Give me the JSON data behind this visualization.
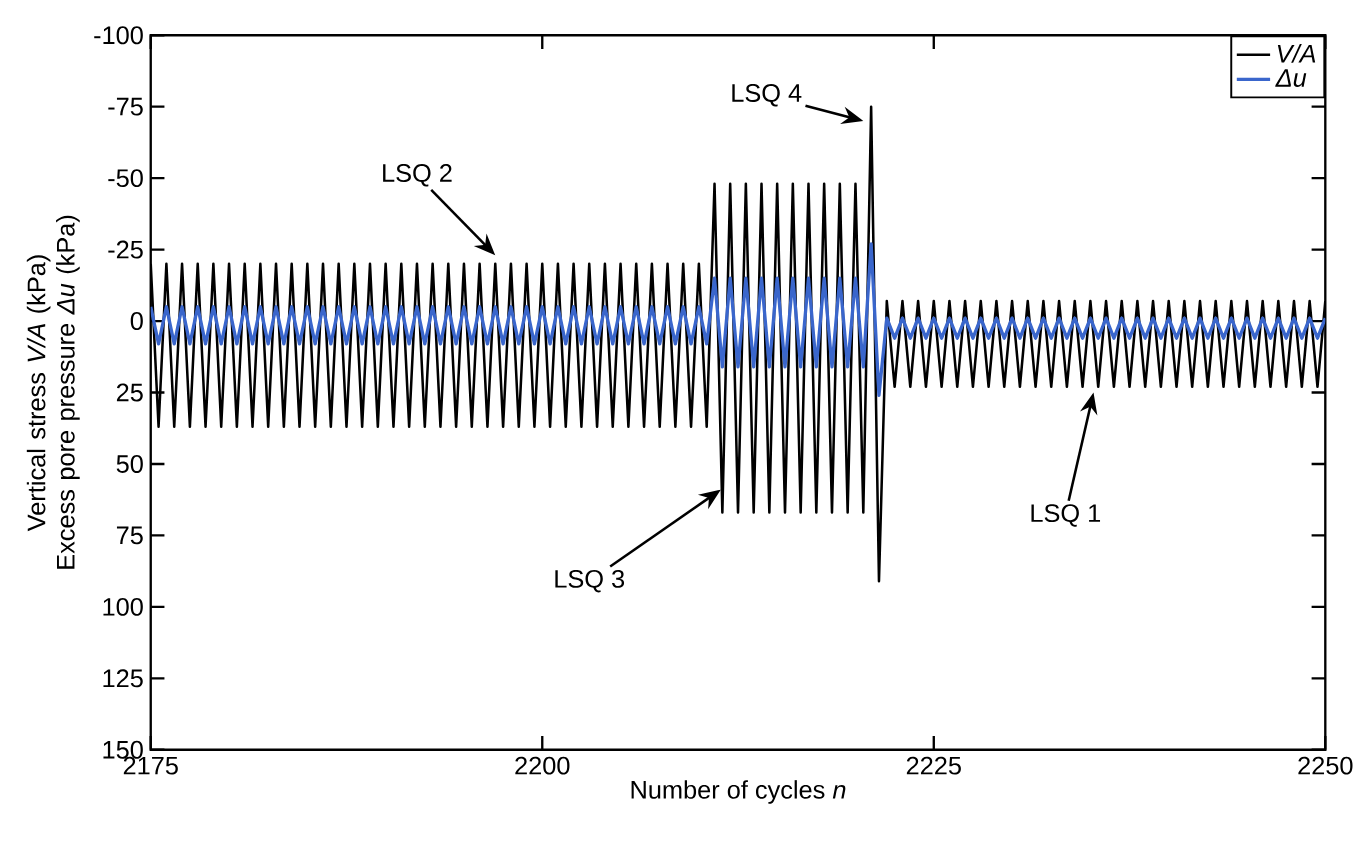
{
  "chart_data": {
    "type": "line",
    "xlabel": "Number of cycles *n*",
    "ylabel": "Vertical stress *V/A* (kPa) Excess pore pressure *Δu* (kPa)",
    "x": [
      2175,
      2175.5,
      2176,
      2176.5,
      2177,
      2177.5,
      2178,
      2178.5,
      2179,
      2179.5,
      2180,
      2180.5,
      2181,
      2181.5,
      2182,
      2182.5,
      2183,
      2183.5,
      2184,
      2184.5,
      2185,
      2185.5,
      2186,
      2186.5,
      2187,
      2187.5,
      2188,
      2188.5,
      2189,
      2189.5,
      2190,
      2190.5,
      2191,
      2191.5,
      2192,
      2192.5,
      2193,
      2193.5,
      2194,
      2194.5,
      2195,
      2195.5,
      2196,
      2196.5,
      2197,
      2197.5,
      2198,
      2198.5,
      2199,
      2199.5,
      2200,
      2200.5,
      2201,
      2201.5,
      2202,
      2202.5,
      2203,
      2203.5,
      2204,
      2204.5,
      2205,
      2205.5,
      2206,
      2206.5,
      2207,
      2207.5,
      2208,
      2208.5,
      2209,
      2209.5,
      2210,
      2210.5,
      2211,
      2211.5,
      2212,
      2212.5,
      2213,
      2213.5,
      2214,
      2214.5,
      2215,
      2215.5,
      2216,
      2216.5,
      2217,
      2217.5,
      2218,
      2218.5,
      2219,
      2219.5,
      2220,
      2220.5,
      2221,
      2221.5,
      2222,
      2222.5,
      2223,
      2223.5,
      2224,
      2224.5,
      2225,
      2225.5,
      2226,
      2226.5,
      2227,
      2227.5,
      2228,
      2228.5,
      2229,
      2229.5,
      2230,
      2230.5,
      2231,
      2231.5,
      2232,
      2232.5,
      2233,
      2233.5,
      2234,
      2234.5,
      2235,
      2235.5,
      2236,
      2236.5,
      2237,
      2237.5,
      2238,
      2238.5,
      2239,
      2239.5,
      2240,
      2240.5,
      2241,
      2241.5,
      2242,
      2242.5,
      2243,
      2243.5,
      2244,
      2244.5,
      2245,
      2245.5,
      2246,
      2246.5,
      2247,
      2247.5,
      2248,
      2248.5,
      2249,
      2249.5,
      2250
    ],
    "series": [
      {
        "name": "V/A",
        "color": "#000000",
        "values": [
          -20,
          37,
          -20,
          37,
          -20,
          37,
          -20,
          37,
          -20,
          37,
          -20,
          37,
          -20,
          37,
          -20,
          37,
          -20,
          37,
          -20,
          37,
          -20,
          37,
          -20,
          37,
          -20,
          37,
          -20,
          37,
          -20,
          37,
          -20,
          37,
          -20,
          37,
          -20,
          37,
          -20,
          37,
          -20,
          37,
          -20,
          37,
          -20,
          37,
          -20,
          37,
          -20,
          37,
          -20,
          37,
          -20,
          37,
          -20,
          37,
          -20,
          37,
          -20,
          37,
          -20,
          37,
          -20,
          37,
          -20,
          37,
          -20,
          37,
          -20,
          37,
          -20,
          37,
          -20,
          37,
          -48,
          67,
          -48,
          67,
          -48,
          67,
          -48,
          67,
          -48,
          67,
          -48,
          67,
          -48,
          67,
          -48,
          67,
          -48,
          67,
          -48,
          67,
          -75,
          91,
          -7,
          23,
          -7,
          23,
          -7,
          23,
          -7,
          23,
          -7,
          23,
          -7,
          23,
          -7,
          23,
          -7,
          23,
          -7,
          23,
          -7,
          23,
          -7,
          23,
          -7,
          23,
          -7,
          23,
          -7,
          23,
          -7,
          23,
          -7,
          23,
          -7,
          23,
          -7,
          23,
          -7,
          23,
          -7,
          23,
          -7,
          23,
          -7,
          23,
          -7,
          23,
          -7,
          23,
          -7,
          23,
          -7,
          23,
          -7,
          23,
          -7,
          23,
          -7
        ]
      },
      {
        "name": "Δu",
        "color": "#3a66cc",
        "values": [
          -5,
          8,
          -5,
          8,
          -5,
          8,
          -5,
          8,
          -5,
          8,
          -5,
          8,
          -5,
          8,
          -5,
          8,
          -5,
          8,
          -5,
          8,
          -5,
          8,
          -5,
          8,
          -5,
          8,
          -5,
          8,
          -5,
          8,
          -5,
          8,
          -5,
          8,
          -5,
          8,
          -5,
          8,
          -5,
          8,
          -5,
          8,
          -5,
          8,
          -5,
          8,
          -5,
          8,
          -5,
          8,
          -5,
          8,
          -5,
          8,
          -5,
          8,
          -5,
          8,
          -5,
          8,
          -5,
          8,
          -5,
          8,
          -5,
          8,
          -5,
          8,
          -5,
          8,
          -5,
          8,
          -15,
          16,
          -15,
          16,
          -15,
          16,
          -15,
          16,
          -15,
          16,
          -15,
          16,
          -15,
          16,
          -15,
          16,
          -15,
          16,
          -15,
          16,
          -27,
          26,
          -1,
          6,
          -1,
          6,
          -1,
          6,
          -1,
          6,
          -1,
          6,
          -1,
          6,
          -1,
          6,
          -1,
          6,
          -1,
          6,
          -1,
          6,
          -1,
          6,
          -1,
          6,
          -1,
          6,
          -1,
          6,
          -1,
          6,
          -1,
          6,
          -1,
          6,
          -1,
          6,
          -1,
          6,
          -1,
          6,
          -1,
          6,
          -1,
          6,
          -1,
          6,
          -1,
          6,
          -1,
          6,
          -1,
          6,
          -1,
          6,
          -1,
          6,
          -1
        ]
      }
    ],
    "xlim": [
      2175,
      2250
    ],
    "xticks": [
      2175,
      2200,
      2225,
      2250
    ],
    "ylim": [
      150,
      -100
    ],
    "yticks": [
      -100,
      -75,
      -50,
      -25,
      0,
      25,
      50,
      75,
      100,
      125,
      150
    ],
    "legend": "top right",
    "annotations": [
      {
        "text": "LSQ 2",
        "x": 2197,
        "y": -23
      },
      {
        "text": "LSQ 4",
        "x": 2220.5,
        "y": -70
      },
      {
        "text": "LSQ 3",
        "x": 2211.4,
        "y": 59
      },
      {
        "text": "LSQ 1",
        "x": 2235.2,
        "y": 25
      }
    ]
  }
}
